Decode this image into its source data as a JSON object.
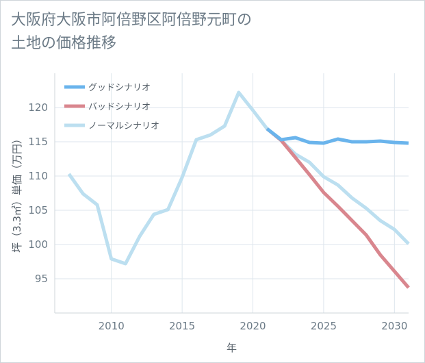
{
  "title_line1": "大阪府大阪市阿倍野区阿倍野元町の",
  "title_line2": "土地の価格推移",
  "chart_data": {
    "type": "line",
    "title": "大阪府大阪市阿倍野区阿倍野元町の土地の価格推移",
    "xlabel": "年",
    "ylabel": "坪（3.3㎡）単価（万円）",
    "xlim": [
      2006,
      2031
    ],
    "ylim": [
      90,
      125
    ],
    "xticks": [
      2010,
      2015,
      2020,
      2025,
      2030
    ],
    "yticks": [
      95,
      100,
      105,
      110,
      115,
      120
    ],
    "grid": true,
    "legend_position": "top-left",
    "series": [
      {
        "name": "グッドシナリオ",
        "color": "#6ab4ec",
        "x": [
          2021,
          2022,
          2023,
          2024,
          2025,
          2026,
          2027,
          2028,
          2029,
          2030,
          2031
        ],
        "y": [
          116.9,
          115.3,
          115.6,
          114.9,
          114.8,
          115.4,
          115.0,
          115.0,
          115.1,
          114.9,
          114.8
        ]
      },
      {
        "name": "バッドシナリオ",
        "color": "#d9868e",
        "x": [
          2021,
          2022,
          2023,
          2024,
          2025,
          2026,
          2027,
          2028,
          2029,
          2030,
          2031
        ],
        "y": [
          116.9,
          115.2,
          112.7,
          110.2,
          107.6,
          105.6,
          103.5,
          101.4,
          98.5,
          96.1,
          93.7
        ]
      },
      {
        "name": "ノーマルシナリオ",
        "color": "#bcdff0",
        "x": [
          2007,
          2008,
          2009,
          2010,
          2011,
          2012,
          2013,
          2014,
          2015,
          2016,
          2017,
          2018,
          2019,
          2020,
          2021,
          2022,
          2023,
          2024,
          2025,
          2026,
          2027,
          2028,
          2029,
          2030,
          2031
        ],
        "y": [
          110.3,
          107.4,
          105.8,
          97.9,
          97.2,
          101.2,
          104.4,
          105.1,
          109.8,
          115.3,
          116.0,
          117.3,
          122.2,
          119.6,
          116.9,
          115.2,
          113.2,
          112.0,
          109.9,
          108.7,
          106.8,
          105.3,
          103.5,
          102.2,
          100.1
        ]
      }
    ]
  }
}
